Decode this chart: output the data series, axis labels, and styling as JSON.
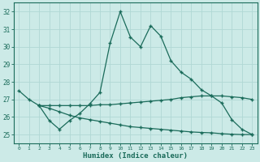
{
  "xlabel": "Humidex (Indice chaleur)",
  "bg_color": "#cceae7",
  "grid_color": "#b0d8d4",
  "line_color": "#1a6b5a",
  "ylim": [
    24.5,
    32.5
  ],
  "xlim": [
    -0.5,
    23.5
  ],
  "yticks": [
    25,
    26,
    27,
    28,
    29,
    30,
    31,
    32
  ],
  "xticks": [
    0,
    1,
    2,
    3,
    4,
    5,
    6,
    7,
    8,
    9,
    10,
    11,
    12,
    13,
    14,
    15,
    16,
    17,
    18,
    19,
    20,
    21,
    22,
    23
  ],
  "line1_x": [
    0,
    1,
    2,
    3,
    4,
    5,
    6,
    7,
    8,
    9,
    10,
    11,
    12,
    13,
    14,
    15,
    16,
    17,
    18,
    19,
    20,
    21,
    22,
    23
  ],
  "line1_y": [
    27.5,
    27.0,
    26.65,
    25.8,
    25.3,
    25.8,
    26.2,
    26.75,
    27.4,
    30.2,
    32.0,
    30.55,
    30.0,
    31.2,
    30.6,
    29.2,
    28.55,
    28.15,
    27.55,
    27.2,
    26.8,
    25.85,
    25.3,
    25.0
  ],
  "line2_x": [
    2,
    3,
    4,
    5,
    6,
    7,
    8,
    9,
    10,
    11,
    12,
    13,
    14,
    15,
    16,
    17,
    18,
    19,
    20,
    21,
    22,
    23
  ],
  "line2_y": [
    26.65,
    26.65,
    26.65,
    26.65,
    26.65,
    26.65,
    26.7,
    26.7,
    26.75,
    26.8,
    26.85,
    26.9,
    26.95,
    27.0,
    27.1,
    27.15,
    27.2,
    27.2,
    27.2,
    27.15,
    27.1,
    27.0
  ],
  "line3_x": [
    2,
    3,
    4,
    5,
    6,
    7,
    8,
    9,
    10,
    11,
    12,
    13,
    14,
    15,
    16,
    17,
    18,
    19,
    20,
    21,
    22,
    23
  ],
  "line3_y": [
    26.65,
    26.5,
    26.3,
    26.1,
    25.95,
    25.85,
    25.75,
    25.65,
    25.55,
    25.45,
    25.4,
    25.35,
    25.3,
    25.25,
    25.2,
    25.15,
    25.12,
    25.1,
    25.05,
    25.02,
    25.0,
    25.0
  ]
}
